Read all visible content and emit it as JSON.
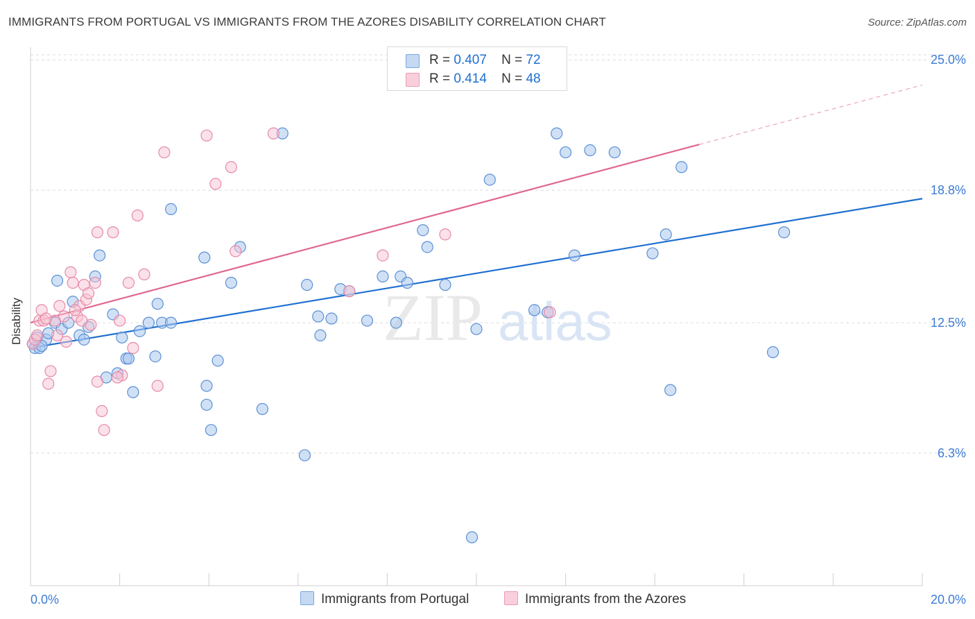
{
  "title": "IMMIGRANTS FROM PORTUGAL VS IMMIGRANTS FROM THE AZORES DISABILITY CORRELATION CHART",
  "source": "Source: ZipAtlas.com",
  "watermark": {
    "zip": "ZIP",
    "atlas": "atlas"
  },
  "legend_top": {
    "rows": [
      {
        "r_label": "R =",
        "r_value": "0.407",
        "n_label": "N =",
        "n_value": "72",
        "color": "#a9c8ef"
      },
      {
        "r_label": "R =",
        "r_value": "0.414",
        "n_label": "N =",
        "n_value": "48",
        "color": "#f5b8cb"
      }
    ]
  },
  "legend_bottom": {
    "portugal": "Immigrants from Portugal",
    "azores": "Immigrants from the Azores"
  },
  "chart_data": {
    "type": "scatter",
    "title": "IMMIGRANTS FROM PORTUGAL VS IMMIGRANTS FROM THE AZORES DISABILITY CORRELATION CHART",
    "xlabel": "",
    "ylabel": "Disability",
    "xlim": [
      0,
      20
    ],
    "ylim": [
      0,
      25.6
    ],
    "x_tick_labels": [
      "0.0%",
      "20.0%"
    ],
    "y_ticks": [
      6.3,
      12.5,
      18.8,
      25.0
    ],
    "y_tick_labels": [
      "6.3%",
      "12.5%",
      "18.8%",
      "25.0%"
    ],
    "grid": "horizontal dashed",
    "legend_position": "top-center",
    "colors": {
      "portugal_fill": "#a9c8ef",
      "portugal_stroke": "#5b8fd4",
      "portugal_line": "#1f6fd1",
      "azores_fill": "#f7c3d3",
      "azores_stroke": "#e58aa7",
      "azores_line": "#e0668f",
      "tick_label": "#3d7bd6"
    },
    "series": [
      {
        "name": "Immigrants from Portugal",
        "trend": {
          "x0": 0,
          "y0": 11.3,
          "x1": 20,
          "y1": 18.4,
          "solid_until": 20
        },
        "points": [
          [
            0.05,
            11.5
          ],
          [
            0.1,
            11.3
          ],
          [
            0.15,
            11.8
          ],
          [
            0.2,
            11.3
          ],
          [
            0.35,
            11.7
          ],
          [
            0.4,
            12.0
          ],
          [
            0.55,
            12.5
          ],
          [
            0.6,
            14.5
          ],
          [
            0.7,
            12.2
          ],
          [
            0.85,
            12.5
          ],
          [
            0.95,
            13.5
          ],
          [
            1.1,
            11.9
          ],
          [
            1.2,
            11.7
          ],
          [
            1.3,
            12.3
          ],
          [
            1.45,
            14.7
          ],
          [
            1.55,
            15.7
          ],
          [
            1.7,
            9.9
          ],
          [
            1.85,
            12.9
          ],
          [
            1.95,
            10.1
          ],
          [
            2.05,
            11.8
          ],
          [
            2.15,
            10.8
          ],
          [
            2.3,
            9.2
          ],
          [
            2.45,
            12.1
          ],
          [
            3.15,
            17.9
          ],
          [
            2.2,
            10.8
          ],
          [
            2.65,
            12.5
          ],
          [
            2.8,
            10.9
          ],
          [
            2.95,
            12.5
          ],
          [
            3.15,
            12.5
          ],
          [
            2.85,
            13.4
          ],
          [
            3.9,
            15.6
          ],
          [
            3.95,
            9.5
          ],
          [
            3.95,
            8.6
          ],
          [
            4.05,
            7.4
          ],
          [
            4.2,
            10.7
          ],
          [
            4.5,
            14.4
          ],
          [
            4.7,
            16.1
          ],
          [
            5.2,
            8.4
          ],
          [
            5.65,
            21.5
          ],
          [
            6.15,
            6.2
          ],
          [
            6.2,
            14.3
          ],
          [
            6.45,
            12.8
          ],
          [
            6.5,
            11.9
          ],
          [
            6.75,
            12.7
          ],
          [
            6.95,
            14.1
          ],
          [
            7.15,
            14.0
          ],
          [
            7.55,
            12.6
          ],
          [
            7.9,
            14.7
          ],
          [
            8.2,
            12.5
          ],
          [
            8.3,
            14.7
          ],
          [
            8.45,
            14.4
          ],
          [
            8.8,
            16.9
          ],
          [
            8.9,
            16.1
          ],
          [
            9.3,
            14.3
          ],
          [
            9.9,
            2.3
          ],
          [
            10.0,
            12.2
          ],
          [
            10.3,
            19.3
          ],
          [
            10.4,
            25.0
          ],
          [
            11.3,
            13.1
          ],
          [
            11.6,
            13.0
          ],
          [
            11.8,
            21.5
          ],
          [
            12.0,
            20.6
          ],
          [
            12.2,
            15.7
          ],
          [
            12.55,
            20.7
          ],
          [
            13.1,
            20.6
          ],
          [
            13.95,
            15.8
          ],
          [
            14.25,
            16.7
          ],
          [
            14.35,
            9.3
          ],
          [
            14.6,
            19.9
          ],
          [
            16.65,
            11.1
          ],
          [
            16.9,
            16.8
          ],
          [
            0.25,
            11.4
          ]
        ]
      },
      {
        "name": "Immigrants from the Azores",
        "trend": {
          "x0": 0,
          "y0": 12.5,
          "x1": 20,
          "y1": 23.8,
          "solid_until": 15.0
        },
        "points": [
          [
            0.05,
            11.5
          ],
          [
            0.1,
            11.7
          ],
          [
            0.2,
            12.6
          ],
          [
            0.25,
            13.1
          ],
          [
            0.4,
            9.6
          ],
          [
            0.45,
            10.2
          ],
          [
            0.55,
            12.6
          ],
          [
            0.65,
            13.3
          ],
          [
            0.75,
            12.8
          ],
          [
            0.8,
            11.6
          ],
          [
            0.9,
            14.9
          ],
          [
            0.95,
            14.4
          ],
          [
            1.05,
            12.8
          ],
          [
            1.1,
            13.3
          ],
          [
            1.2,
            14.3
          ],
          [
            1.25,
            13.6
          ],
          [
            1.3,
            13.9
          ],
          [
            1.35,
            12.4
          ],
          [
            1.45,
            14.4
          ],
          [
            1.5,
            9.7
          ],
          [
            1.6,
            8.3
          ],
          [
            1.65,
            7.4
          ],
          [
            1.5,
            16.8
          ],
          [
            1.85,
            16.8
          ],
          [
            2.0,
            12.6
          ],
          [
            2.05,
            10.0
          ],
          [
            2.2,
            14.4
          ],
          [
            2.3,
            11.3
          ],
          [
            2.4,
            17.6
          ],
          [
            2.55,
            14.8
          ],
          [
            2.85,
            9.5
          ],
          [
            3.0,
            20.6
          ],
          [
            3.95,
            21.4
          ],
          [
            4.15,
            19.1
          ],
          [
            4.5,
            19.9
          ],
          [
            4.6,
            15.9
          ],
          [
            5.45,
            21.5
          ],
          [
            7.15,
            14.0
          ],
          [
            7.9,
            15.7
          ],
          [
            9.3,
            16.7
          ],
          [
            11.65,
            13.0
          ],
          [
            0.3,
            12.6
          ],
          [
            0.6,
            11.9
          ],
          [
            1.0,
            13.1
          ],
          [
            1.15,
            12.6
          ],
          [
            1.95,
            9.9
          ],
          [
            0.15,
            11.9
          ],
          [
            0.35,
            12.7
          ]
        ]
      }
    ]
  }
}
